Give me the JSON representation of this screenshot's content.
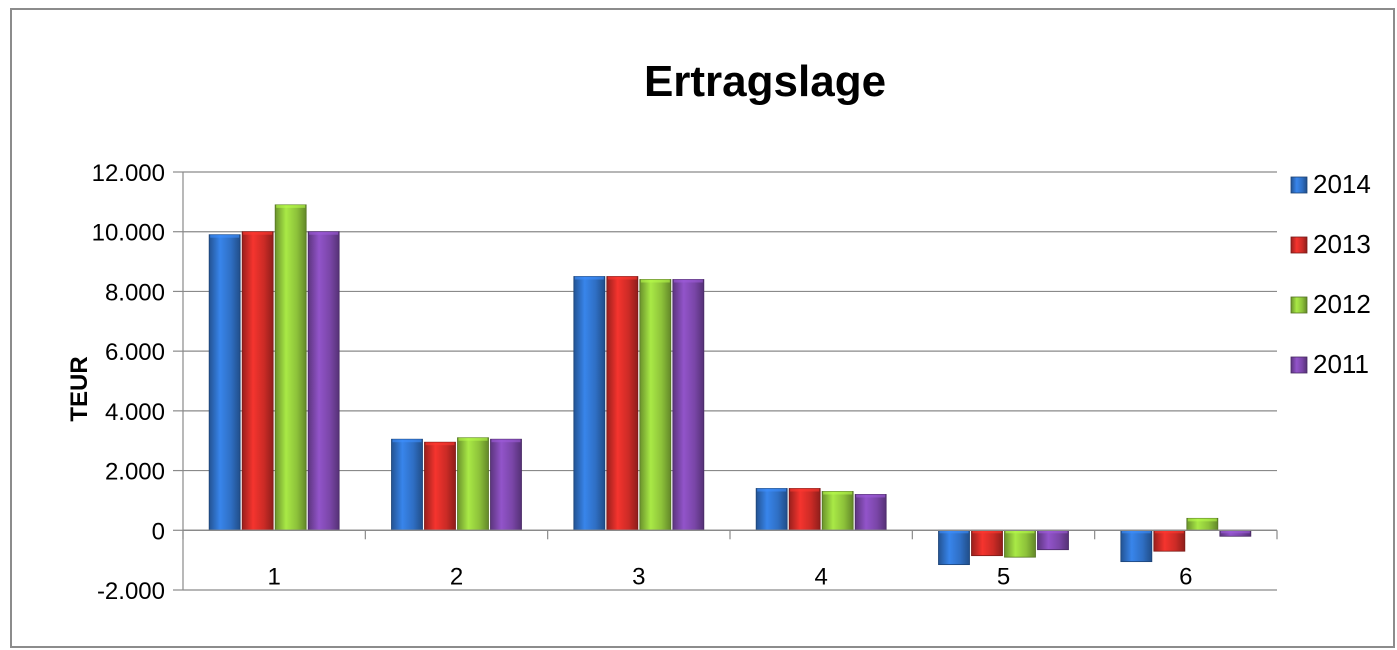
{
  "chart_data": {
    "type": "bar",
    "title": "Ertragslage",
    "xlabel": "",
    "ylabel": "TEUR",
    "categories": [
      "1",
      "2",
      "3",
      "4",
      "5",
      "6"
    ],
    "ylim": [
      -2000,
      12000
    ],
    "yticks": [
      -2000,
      0,
      2000,
      4000,
      6000,
      8000,
      10000,
      12000
    ],
    "ytick_labels": [
      "-2.000",
      "0",
      "2.000",
      "4.000",
      "6.000",
      "8.000",
      "10.000",
      "12.000"
    ],
    "grid": true,
    "legend_position": "right",
    "series": [
      {
        "name": "2014",
        "color": "#2f6fc4",
        "values": [
          9900,
          3050,
          8500,
          1400,
          -1150,
          -1050
        ]
      },
      {
        "name": "2013",
        "color": "#cc2b26",
        "values": [
          10000,
          2950,
          8500,
          1400,
          -850,
          -700
        ]
      },
      {
        "name": "2012",
        "color": "#8dc23a",
        "values": [
          10900,
          3100,
          8400,
          1300,
          -900,
          400
        ]
      },
      {
        "name": "2011",
        "color": "#7a46a8",
        "values": [
          10000,
          3050,
          8400,
          1200,
          -650,
          -200
        ]
      }
    ]
  }
}
